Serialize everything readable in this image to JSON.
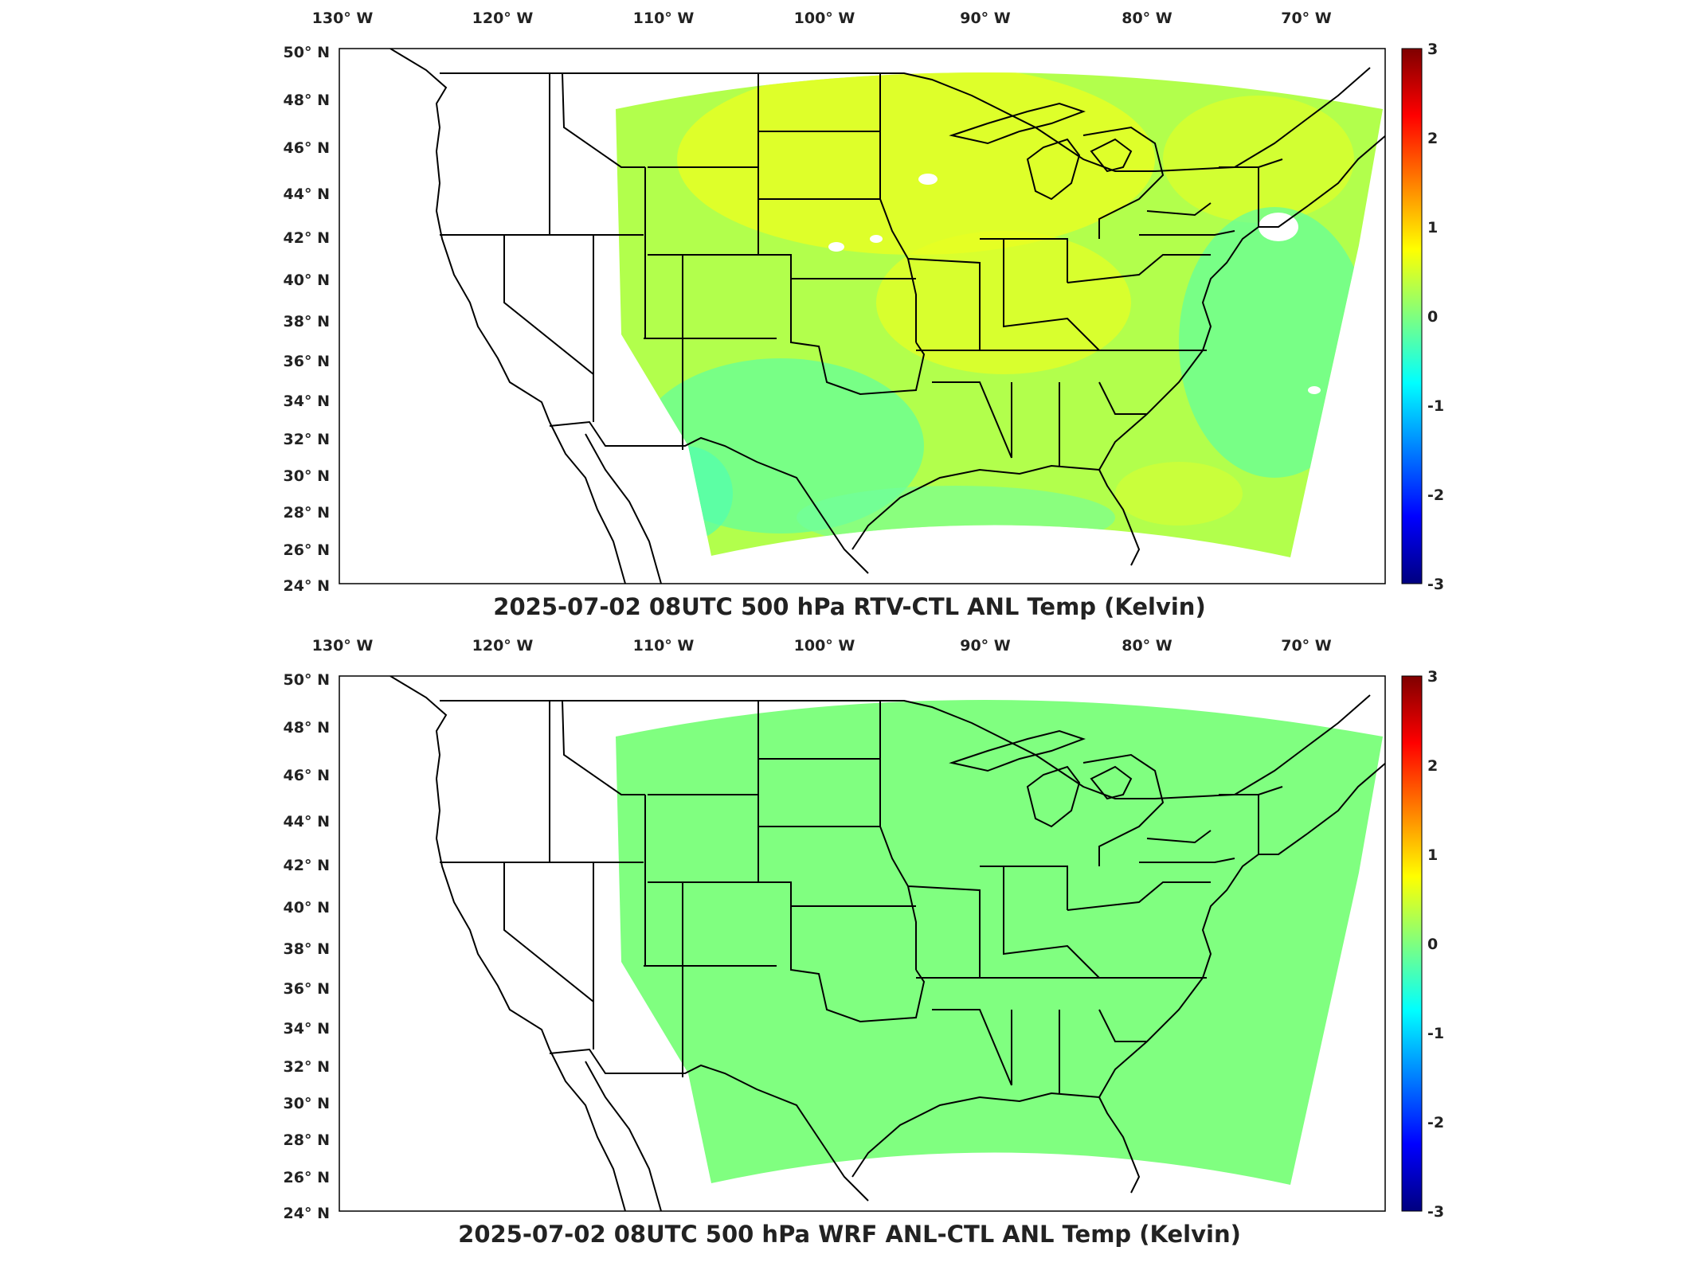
{
  "figure": {
    "panels": [
      {
        "title": "2025-07-02 08UTC 500 hPa RTV-CTL ANL Temp (Kelvin)",
        "field": "difference-pattern"
      },
      {
        "title": "2025-07-02 08UTC 500 hPa WRF ANL-CTL ANL Temp (Kelvin)",
        "field": "zero"
      }
    ],
    "lon_labels": [
      "130",
      "120",
      "110",
      "100",
      "90",
      "80",
      "70"
    ],
    "lon_hemisphere": "W",
    "lat_labels": [
      "50",
      "48",
      "46",
      "44",
      "42",
      "40",
      "38",
      "36",
      "34",
      "32",
      "30",
      "28",
      "26",
      "24"
    ],
    "lat_hemisphere": "N",
    "degree_symbol": "°",
    "colorbar_ticks": [
      "3",
      "2",
      "1",
      "0",
      "-1",
      "-2",
      "-3"
    ],
    "colors": {
      "jet_stops": [
        "#00007f",
        "#0000ff",
        "#007fff",
        "#00ffff",
        "#7fff7f",
        "#ffff00",
        "#ff7f00",
        "#ff0000",
        "#7f0000"
      ],
      "zero_fill": "#80ff80",
      "frame": "#000000"
    }
  },
  "chart_data": [
    {
      "type": "heatmap",
      "title": "2025-07-02 08UTC 500 hPa RTV-CTL ANL Temp (Kelvin)",
      "xlabel": "",
      "ylabel": "",
      "x_ticks": [
        "130° W",
        "120° W",
        "110° W",
        "100° W",
        "90° W",
        "80° W",
        "70° W"
      ],
      "y_ticks": [
        "50° N",
        "48° N",
        "46° N",
        "44° N",
        "42° N",
        "40° N",
        "38° N",
        "36° N",
        "34° N",
        "32° N",
        "30° N",
        "28° N",
        "26° N",
        "24° N"
      ],
      "xlim": [
        -130,
        -65
      ],
      "ylim": [
        24,
        50
      ],
      "colorbar_range": [
        -3,
        3
      ],
      "values_estimate": "mostly between -0.7 and 1.0 K; warmer (≈0.7 K) over northern plains, Great Lakes and Mississippi valley, cooler (≈-0.5 K) over southern plains, Gulf coast and western Atlantic"
    },
    {
      "type": "heatmap",
      "title": "2025-07-02 08UTC 500 hPa WRF ANL-CTL ANL Temp (Kelvin)",
      "xlabel": "",
      "ylabel": "",
      "x_ticks": [
        "130° W",
        "120° W",
        "110° W",
        "100° W",
        "90° W",
        "80° W",
        "70° W"
      ],
      "y_ticks": [
        "50° N",
        "48° N",
        "46° N",
        "44° N",
        "42° N",
        "40° N",
        "38° N",
        "36° N",
        "34° N",
        "32° N",
        "30° N",
        "28° N",
        "26° N",
        "24° N"
      ],
      "xlim": [
        -130,
        -65
      ],
      "ylim": [
        24,
        50
      ],
      "colorbar_range": [
        -3,
        3
      ],
      "values_estimate": "uniformly 0 K across the domain"
    }
  ]
}
